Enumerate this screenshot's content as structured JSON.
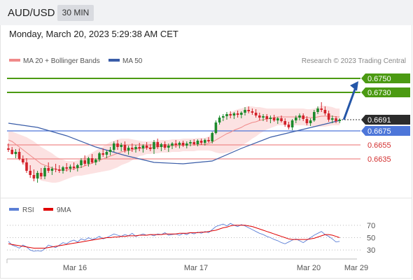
{
  "header": {
    "symbol": "AUD/USD",
    "timeframe": "30 MIN"
  },
  "datetime": "Monday, March 20, 2023 5:29:38 AM CET",
  "legend": {
    "bollinger": {
      "label": "MA 20 + Bollinger Bands",
      "color": "#f08a8a"
    },
    "ma50": {
      "label": "MA 50",
      "color": "#3a5da8"
    }
  },
  "credit": "Research © 2023 Trading Central",
  "rsi_legend": {
    "rsi": {
      "label": "RSI",
      "color": "#5b7fd6"
    },
    "ma9": {
      "label": "9MA",
      "color": "#e00000"
    }
  },
  "colors": {
    "up": "#1c8a2c",
    "down": "#d2222a",
    "resistance": "#4b9a12",
    "support_blue": "#4d76d9",
    "support_red": "#f08a8a",
    "arrow": "#2456a8"
  },
  "chart_data": [
    {
      "type": "candlestick",
      "ylim": [
        0.6585,
        0.6765
      ],
      "x_ticks": [
        {
          "label": "Mar 16",
          "pos": 0.25
        },
        {
          "label": "Mar 17",
          "pos": 0.5
        },
        {
          "label": "Mar 20",
          "pos": 0.75
        },
        {
          "label": "Mar 29",
          "pos": 1.0
        }
      ],
      "levels": [
        {
          "value": 0.675,
          "label": "0.6750",
          "kind": "resistance"
        },
        {
          "value": 0.673,
          "label": "0.6730",
          "kind": "resistance"
        },
        {
          "value": 0.6691,
          "label": "0.6691",
          "kind": "last"
        },
        {
          "value": 0.6675,
          "label": "0.6675",
          "kind": "support_blue"
        },
        {
          "value": 0.6655,
          "label": "0.6655",
          "kind": "support_red"
        },
        {
          "value": 0.6635,
          "label": "0.6635",
          "kind": "support_red"
        }
      ],
      "ohlc": [
        [
          0.665,
          0.6657,
          0.6645,
          0.6648
        ],
        [
          0.6648,
          0.6652,
          0.6641,
          0.6642
        ],
        [
          0.6642,
          0.6649,
          0.6636,
          0.6645
        ],
        [
          0.6645,
          0.665,
          0.6633,
          0.6635
        ],
        [
          0.6635,
          0.664,
          0.6627,
          0.663
        ],
        [
          0.663,
          0.6636,
          0.6615,
          0.6618
        ],
        [
          0.6618,
          0.6626,
          0.6608,
          0.6612
        ],
        [
          0.6612,
          0.662,
          0.6603,
          0.6607
        ],
        [
          0.6607,
          0.6618,
          0.6601,
          0.6615
        ],
        [
          0.6615,
          0.6622,
          0.6606,
          0.661
        ],
        [
          0.661,
          0.6625,
          0.6606,
          0.6622
        ],
        [
          0.6622,
          0.663,
          0.6615,
          0.6618
        ],
        [
          0.6618,
          0.6624,
          0.6612,
          0.6621
        ],
        [
          0.6621,
          0.6628,
          0.6616,
          0.662
        ],
        [
          0.662,
          0.6626,
          0.6615,
          0.6618
        ],
        [
          0.6618,
          0.6625,
          0.6614,
          0.6623
        ],
        [
          0.6623,
          0.6629,
          0.6617,
          0.6621
        ],
        [
          0.6621,
          0.6627,
          0.6616,
          0.6624
        ],
        [
          0.6624,
          0.663,
          0.6619,
          0.6622
        ],
        [
          0.6622,
          0.6628,
          0.6617,
          0.6626
        ],
        [
          0.6626,
          0.6636,
          0.6622,
          0.6633
        ],
        [
          0.6633,
          0.664,
          0.6625,
          0.6628
        ],
        [
          0.6628,
          0.6638,
          0.6624,
          0.6636
        ],
        [
          0.6636,
          0.6642,
          0.6628,
          0.663
        ],
        [
          0.663,
          0.6636,
          0.6626,
          0.6634
        ],
        [
          0.6634,
          0.6645,
          0.6631,
          0.6643
        ],
        [
          0.6643,
          0.665,
          0.6638,
          0.6641
        ],
        [
          0.6641,
          0.6647,
          0.6636,
          0.6645
        ],
        [
          0.6645,
          0.6652,
          0.664,
          0.6648
        ],
        [
          0.6648,
          0.666,
          0.6645,
          0.6657
        ],
        [
          0.6657,
          0.6662,
          0.6648,
          0.6652
        ],
        [
          0.6652,
          0.6658,
          0.6646,
          0.6655
        ],
        [
          0.6655,
          0.666,
          0.6644,
          0.6647
        ],
        [
          0.6647,
          0.6654,
          0.6641,
          0.6651
        ],
        [
          0.6651,
          0.6657,
          0.6645,
          0.6649
        ],
        [
          0.6649,
          0.6655,
          0.6644,
          0.6652
        ],
        [
          0.6652,
          0.6658,
          0.6646,
          0.665
        ],
        [
          0.665,
          0.6656,
          0.6644,
          0.6654
        ],
        [
          0.6654,
          0.6659,
          0.6648,
          0.6651
        ],
        [
          0.6651,
          0.6656,
          0.6646,
          0.6649
        ],
        [
          0.6649,
          0.6662,
          0.6642,
          0.6659
        ],
        [
          0.6659,
          0.6664,
          0.6649,
          0.6652
        ],
        [
          0.6652,
          0.6658,
          0.6646,
          0.6656
        ],
        [
          0.6656,
          0.666,
          0.6648,
          0.6651
        ],
        [
          0.6651,
          0.6657,
          0.6645,
          0.6654
        ],
        [
          0.6654,
          0.6659,
          0.6649,
          0.6657
        ],
        [
          0.6657,
          0.6662,
          0.6651,
          0.6655
        ],
        [
          0.6655,
          0.666,
          0.665,
          0.6658
        ],
        [
          0.6658,
          0.6661,
          0.6652,
          0.6654
        ],
        [
          0.6654,
          0.666,
          0.665,
          0.6657
        ],
        [
          0.6657,
          0.6662,
          0.6653,
          0.6659
        ],
        [
          0.6659,
          0.6663,
          0.6654,
          0.6656
        ],
        [
          0.6656,
          0.6663,
          0.6653,
          0.6661
        ],
        [
          0.6661,
          0.6664,
          0.6655,
          0.6658
        ],
        [
          0.6658,
          0.6664,
          0.6654,
          0.6662
        ],
        [
          0.6662,
          0.6666,
          0.6658,
          0.666
        ],
        [
          0.666,
          0.6674,
          0.6657,
          0.6672
        ],
        [
          0.6672,
          0.669,
          0.667,
          0.6687
        ],
        [
          0.6687,
          0.6697,
          0.6684,
          0.6694
        ],
        [
          0.6694,
          0.6699,
          0.6689,
          0.6696
        ],
        [
          0.6696,
          0.6702,
          0.6691,
          0.6699
        ],
        [
          0.6699,
          0.6703,
          0.6693,
          0.6697
        ],
        [
          0.6697,
          0.6702,
          0.6692,
          0.67
        ],
        [
          0.67,
          0.6704,
          0.6694,
          0.6698
        ],
        [
          0.6698,
          0.6703,
          0.6693,
          0.6701
        ],
        [
          0.6701,
          0.6709,
          0.6697,
          0.6705
        ],
        [
          0.6705,
          0.671,
          0.67,
          0.6703
        ],
        [
          0.6703,
          0.6707,
          0.6698,
          0.6701
        ],
        [
          0.6701,
          0.6706,
          0.6694,
          0.6697
        ],
        [
          0.6697,
          0.6701,
          0.669,
          0.6694
        ],
        [
          0.6694,
          0.6699,
          0.6689,
          0.6696
        ],
        [
          0.6696,
          0.6699,
          0.6688,
          0.6692
        ],
        [
          0.6692,
          0.6697,
          0.6686,
          0.6694
        ],
        [
          0.6694,
          0.6698,
          0.6688,
          0.669
        ],
        [
          0.669,
          0.6695,
          0.6685,
          0.6693
        ],
        [
          0.6693,
          0.6697,
          0.6687,
          0.6689
        ],
        [
          0.6689,
          0.6693,
          0.6681,
          0.6684
        ],
        [
          0.6684,
          0.6688,
          0.6677,
          0.668
        ],
        [
          0.668,
          0.6692,
          0.6676,
          0.669
        ],
        [
          0.669,
          0.6697,
          0.6686,
          0.6694
        ],
        [
          0.6694,
          0.67,
          0.669,
          0.6697
        ],
        [
          0.6697,
          0.67,
          0.6689,
          0.6692
        ],
        [
          0.6692,
          0.6696,
          0.6683,
          0.6686
        ],
        [
          0.6686,
          0.6693,
          0.6682,
          0.669
        ],
        [
          0.669,
          0.6705,
          0.6688,
          0.6702
        ],
        [
          0.6702,
          0.671,
          0.6699,
          0.6707
        ],
        [
          0.6707,
          0.6716,
          0.6702,
          0.6705
        ],
        [
          0.6705,
          0.671,
          0.6697,
          0.67
        ],
        [
          0.67,
          0.6704,
          0.6688,
          0.6691
        ],
        [
          0.6691,
          0.6697,
          0.6686,
          0.6693
        ],
        [
          0.6693,
          0.6696,
          0.6686,
          0.6689
        ],
        [
          0.6689,
          0.6693,
          0.6686,
          0.6691
        ]
      ],
      "ma20": [
        0.6662,
        0.666,
        0.6656,
        0.6652,
        0.6648,
        0.6644,
        0.664,
        0.6636,
        0.6632,
        0.6628,
        0.6626,
        0.6624,
        0.6622,
        0.662,
        0.6619,
        0.6619,
        0.6619,
        0.662,
        0.6621,
        0.6622,
        0.6623,
        0.6625,
        0.6627,
        0.6629,
        0.6631,
        0.6633,
        0.6635,
        0.6637,
        0.6639,
        0.6641,
        0.6643,
        0.6645,
        0.6646,
        0.6647,
        0.6648,
        0.6649,
        0.665,
        0.665,
        0.6651,
        0.6651,
        0.6652,
        0.6652,
        0.6653,
        0.6653,
        0.6653,
        0.6654,
        0.6654,
        0.6654,
        0.6655,
        0.6655,
        0.6655,
        0.6655,
        0.6656,
        0.6656,
        0.6656,
        0.6657,
        0.6659,
        0.6662,
        0.6665,
        0.6668,
        0.6671,
        0.6673,
        0.6676,
        0.6678,
        0.668,
        0.6683,
        0.6685,
        0.6687,
        0.6688,
        0.669,
        0.6691,
        0.6692,
        0.6693,
        0.6694,
        0.6695,
        0.6695,
        0.6695,
        0.6695,
        0.6695,
        0.6695,
        0.6695,
        0.6695,
        0.6694,
        0.6694,
        0.6694,
        0.6695,
        0.6696,
        0.6696,
        0.6696,
        0.6696,
        0.6695,
        0.6695
      ],
      "bb_width": [
        0.0012,
        0.0014,
        0.0016,
        0.0018,
        0.002,
        0.0022,
        0.0023,
        0.0024,
        0.0024,
        0.0024,
        0.0023,
        0.0022,
        0.0021,
        0.0019,
        0.0017,
        0.0015,
        0.0013,
        0.0012,
        0.0011,
        0.0011,
        0.0012,
        0.0013,
        0.0014,
        0.0015,
        0.0016,
        0.0017,
        0.0018,
        0.0019,
        0.002,
        0.002,
        0.002,
        0.0019,
        0.0018,
        0.0017,
        0.0015,
        0.0013,
        0.0011,
        0.001,
        0.0009,
        0.0009,
        0.0009,
        0.0009,
        0.0009,
        0.0009,
        0.0009,
        0.0009,
        0.0009,
        0.0009,
        0.0009,
        0.0009,
        0.0009,
        0.0009,
        0.0009,
        0.0009,
        0.0009,
        0.001,
        0.0013,
        0.0018,
        0.0022,
        0.0025,
        0.0027,
        0.0028,
        0.0028,
        0.0028,
        0.0027,
        0.0026,
        0.0025,
        0.0023,
        0.0021,
        0.0019,
        0.0017,
        0.0015,
        0.0014,
        0.0013,
        0.0012,
        0.0012,
        0.0012,
        0.0012,
        0.0012,
        0.0012,
        0.0012,
        0.0012,
        0.0012,
        0.0012,
        0.0013,
        0.0014,
        0.0015,
        0.0015,
        0.0014,
        0.0013,
        0.0012,
        0.0012
      ],
      "ma50": [
        [
          0,
          0.6686
        ],
        [
          8,
          0.668
        ],
        [
          16,
          0.6668
        ],
        [
          24,
          0.6652
        ],
        [
          32,
          0.664
        ],
        [
          40,
          0.663
        ],
        [
          48,
          0.6628
        ],
        [
          56,
          0.6632
        ],
        [
          64,
          0.665
        ],
        [
          72,
          0.6666
        ],
        [
          80,
          0.6676
        ],
        [
          88,
          0.6686
        ],
        [
          91,
          0.669
        ]
      ],
      "arrow": {
        "from_value": 0.6691,
        "to_value": 0.675
      }
    },
    {
      "type": "line",
      "name": "RSI",
      "ylim": [
        20,
        80
      ],
      "y_ticks": [
        70,
        50,
        30
      ],
      "rsi": [
        44,
        38,
        36,
        33,
        38,
        35,
        30,
        28,
        29,
        28,
        32,
        38,
        36,
        34,
        38,
        42,
        40,
        44,
        46,
        43,
        48,
        46,
        50,
        47,
        49,
        52,
        48,
        50,
        53,
        56,
        54,
        52,
        55,
        53,
        57,
        52,
        54,
        56,
        54,
        55,
        53,
        56,
        55,
        58,
        54,
        55,
        56,
        54,
        57,
        55,
        58,
        56,
        59,
        57,
        60,
        58,
        63,
        68,
        70,
        72,
        69,
        73,
        70,
        68,
        71,
        69,
        66,
        63,
        60,
        57,
        55,
        52,
        50,
        47,
        45,
        42,
        40,
        43,
        46,
        48,
        45,
        42,
        46,
        50,
        54,
        57,
        60,
        55,
        52,
        48,
        43,
        44
      ],
      "ma9": [
        40,
        39,
        38,
        37,
        36,
        35,
        34,
        33,
        33,
        33,
        33,
        34,
        35,
        36,
        37,
        38,
        39,
        40,
        41,
        42,
        43,
        44,
        45,
        46,
        47,
        48,
        49,
        50,
        50,
        51,
        51,
        52,
        52,
        53,
        53,
        53,
        54,
        54,
        54,
        55,
        55,
        55,
        55,
        56,
        56,
        56,
        56,
        57,
        57,
        57,
        58,
        58,
        58,
        59,
        59,
        60,
        61,
        62,
        64,
        66,
        67,
        69,
        70,
        70,
        70,
        70,
        69,
        68,
        66,
        64,
        62,
        60,
        58,
        56,
        54,
        52,
        50,
        48,
        47,
        47,
        47,
        47,
        47,
        48,
        49,
        51,
        53,
        55,
        55,
        54,
        52,
        50
      ]
    }
  ]
}
